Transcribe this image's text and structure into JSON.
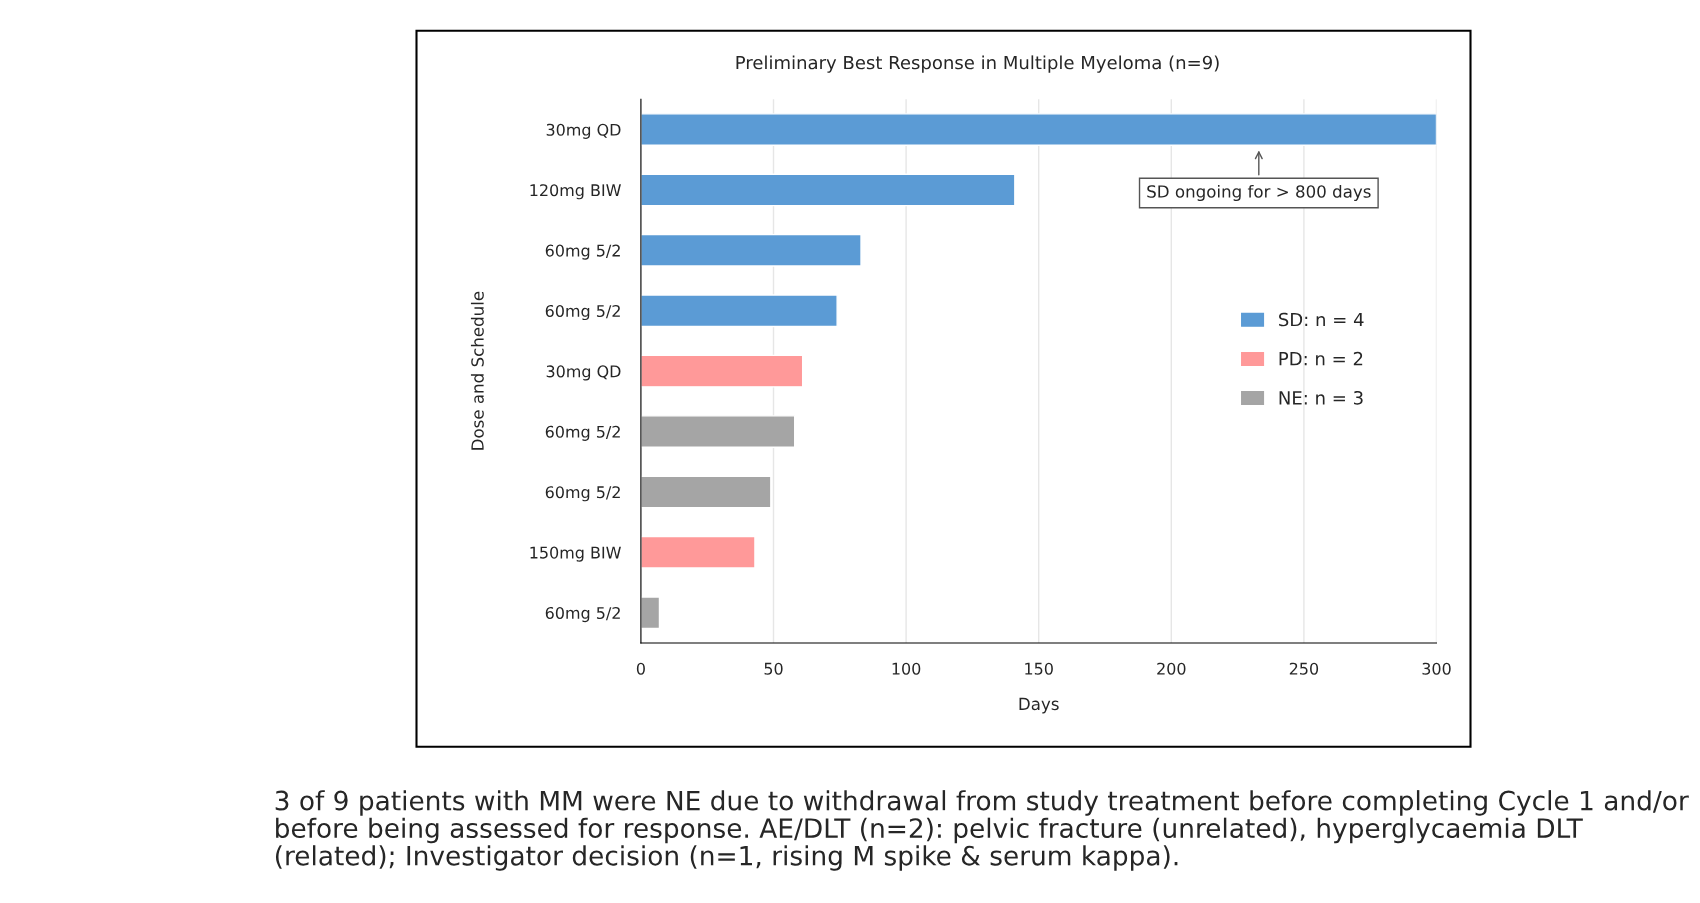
{
  "chart_data": {
    "type": "bar",
    "orientation": "horizontal",
    "title": "Preliminary Best Response in Multiple Myeloma (n=9)",
    "xlabel": "Days",
    "ylabel": "Dose and Schedule",
    "categories": [
      "30mg QD",
      "120mg BIW",
      "60mg 5/2",
      "60mg 5/2",
      "30mg QD",
      "60mg 5/2",
      "60mg 5/2",
      "150mg BIW",
      "60mg 5/2"
    ],
    "series": [
      {
        "name": "SD: n = 4",
        "color": "#5b9bd5",
        "values": [
          300,
          141,
          83,
          74,
          null,
          null,
          null,
          null,
          null
        ]
      },
      {
        "name": "PD: n = 2",
        "color": "#ff9999",
        "values": [
          null,
          null,
          null,
          null,
          61,
          null,
          null,
          43,
          null
        ]
      },
      {
        "name": "NE: n = 3",
        "color": "#a5a5a5",
        "values": [
          null,
          null,
          null,
          null,
          null,
          58,
          49,
          null,
          7
        ]
      }
    ],
    "xlim": [
      0,
      300
    ],
    "xticks": [
      0,
      50,
      100,
      150,
      200,
      250,
      300
    ],
    "grid": "x",
    "legend": "right",
    "annotations": [
      "SD ongoing for > 800 days",
      "3 of 9 patients with MM were NE due to withdrawal from study treatment before completing Cycle 1 and/or before being assessed for response. AE/DLT (n=2): pelvic fracture (unrelated), hyperglycaemia DLT (related); Investigator decision (n=1, rising M spike & serum kappa)."
    ]
  }
}
